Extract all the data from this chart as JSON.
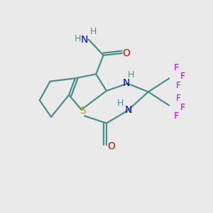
{
  "bg_color": "#eaeaea",
  "teal": "#4a8f8f",
  "blue": "#0000ee",
  "red": "#dd0000",
  "yellow": "#aaaa00",
  "magenta": "#cc00cc",
  "bond_width": 1.6,
  "figsize": [
    3.0,
    3.0
  ],
  "dpi": 100,
  "xlim": [
    0,
    10
  ],
  "ylim": [
    0,
    10
  ]
}
